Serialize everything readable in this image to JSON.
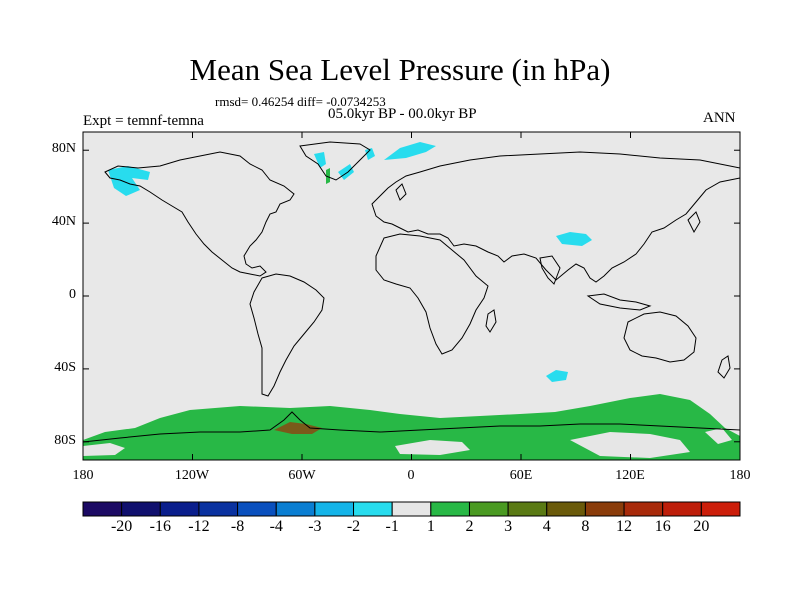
{
  "title": "Mean Sea Level Pressure (in hPa)",
  "stats": "rmsd= 0.46254 diff= -0.0734253",
  "period": "05.0kyr BP - 00.0kyr BP",
  "experiment": "Expt = temnf-temna",
  "season": "ANN",
  "map": {
    "projection": "cylindrical equidistant",
    "land_fill": "#e8e8e8",
    "coast_color": "#000000",
    "lat_labels": [
      "80N",
      "40N",
      "0",
      "40S",
      "80S"
    ],
    "lon_labels": [
      "180",
      "120W",
      "60W",
      "0",
      "60E",
      "120E",
      "180"
    ],
    "lat_values": [
      80,
      40,
      0,
      -40,
      -80
    ],
    "lon_values": [
      -180,
      -120,
      -60,
      0,
      60,
      120,
      180
    ]
  },
  "colorbar": {
    "labels": [
      "-20",
      "-16",
      "-12",
      "-8",
      "-4",
      "-3",
      "-2",
      "-1",
      "1",
      "2",
      "3",
      "4",
      "8",
      "12",
      "16",
      "20"
    ],
    "colors": [
      "#1c0a64",
      "#10106e",
      "#0a1e8c",
      "#0a32a0",
      "#0a50be",
      "#0a7ed2",
      "#14b4e8",
      "#28dcee",
      "#e6e6e6",
      "#28b846",
      "#4a9a22",
      "#5a7a14",
      "#6a5a0a",
      "#8a3c0a",
      "#a82a0a",
      "#be1e0a",
      "#cc1e0a"
    ]
  }
}
